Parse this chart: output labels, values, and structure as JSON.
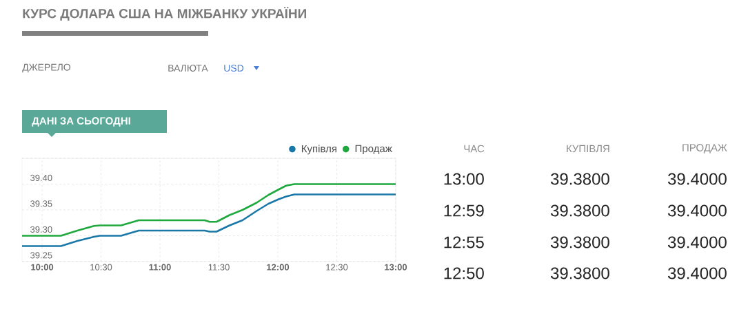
{
  "chart_data": [
    {
      "type": "line",
      "title": "КУРС ДОЛАРА США НА МІЖБАНКУ УКРАЇНИ",
      "subtitle": "ДАНІ ЗА СЬОГОДНІ",
      "annotations": [
        "ДЖЕРЕЛО",
        "ВАЛЮТА",
        "USD"
      ],
      "xlim": [
        9.83,
        13.0
      ],
      "xticks": [
        {
          "value": 10,
          "label": "10:00"
        },
        {
          "value": 10.5,
          "label": "10:30"
        },
        {
          "value": 11,
          "label": "11:00"
        },
        {
          "value": 11.5,
          "label": "11:30"
        },
        {
          "value": 12,
          "label": "12:00"
        },
        {
          "value": 12.5,
          "label": "12:30"
        },
        {
          "value": 13,
          "label": "13:00"
        }
      ],
      "ylim": [
        39.25,
        39.45
      ],
      "yticks": [
        {
          "value": 39.25,
          "label": "39.25"
        },
        {
          "value": 39.3,
          "label": "39.30"
        },
        {
          "value": 39.35,
          "label": "39.35"
        },
        {
          "value": 39.4,
          "label": "39.40"
        },
        {
          "value": 39.45,
          "label": null
        }
      ],
      "grid": true,
      "legend": "top right",
      "marker": "none",
      "line_style": "solid",
      "x": [
        9.83,
        10.16,
        10.3,
        10.44,
        10.49,
        10.67,
        10.82,
        11.38,
        11.42,
        11.48,
        11.59,
        11.7,
        11.82,
        11.92,
        12.01,
        12.07,
        12.14,
        13.0
      ],
      "series": [
        {
          "name": "Купівля",
          "color": "#1a78a8",
          "values": [
            39.28,
            39.28,
            39.29,
            39.298,
            39.3,
            39.3,
            39.31,
            39.31,
            39.308,
            39.308,
            39.32,
            39.33,
            39.348,
            39.362,
            39.371,
            39.376,
            39.38,
            39.38
          ]
        },
        {
          "name": "Продаж",
          "color": "#1fa83d",
          "values": [
            39.3,
            39.3,
            39.31,
            39.319,
            39.32,
            39.32,
            39.33,
            39.33,
            39.327,
            39.327,
            39.34,
            39.35,
            39.364,
            39.379,
            39.39,
            39.397,
            39.4,
            39.4
          ]
        }
      ]
    },
    {
      "type": "other",
      "annotations": [
        "ЧАС",
        "КУПІВЛЯ",
        "ПРОДАЖ",
        "13:00",
        "39.3800",
        "39.4000",
        "12:59",
        "39.3800",
        "39.4000",
        "12:55",
        "39.3800",
        "39.4000",
        "12:50",
        "39.3800",
        "39.4000"
      ]
    }
  ]
}
